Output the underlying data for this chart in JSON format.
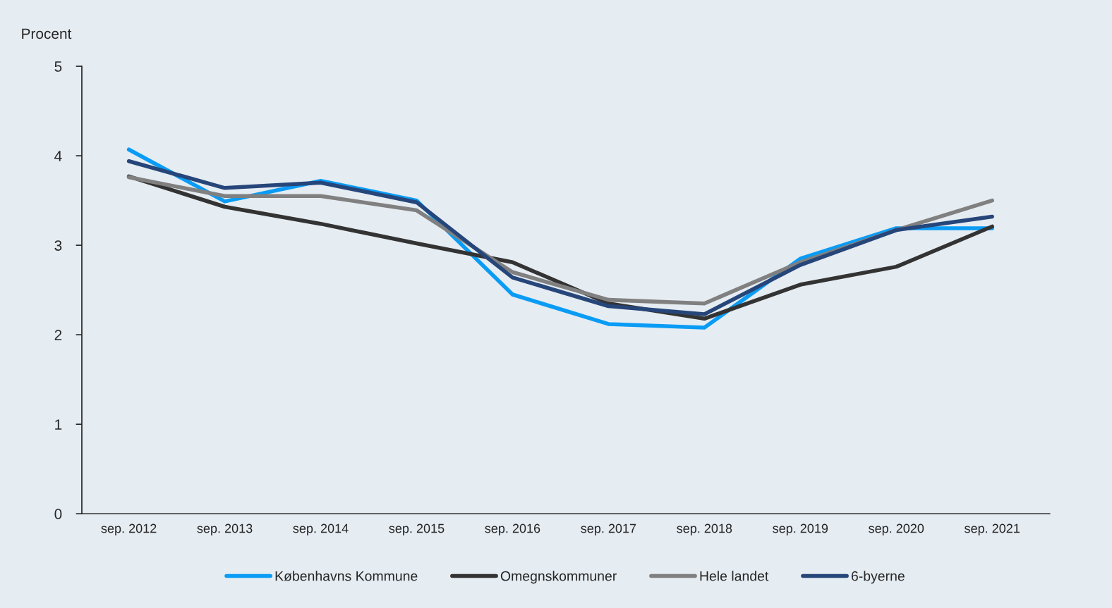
{
  "chart_data": {
    "type": "line",
    "ylabel": "Procent",
    "categories": [
      "sep. 2012",
      "sep. 2013",
      "sep. 2014",
      "sep. 2015",
      "sep. 2016",
      "sep. 2017",
      "sep. 2018",
      "sep. 2019",
      "sep. 2020",
      "sep. 2021"
    ],
    "series": [
      {
        "name": "Københavns Kommune",
        "color": "#0a9cf5",
        "values": [
          4.07,
          3.49,
          3.72,
          3.5,
          2.45,
          2.12,
          2.08,
          2.85,
          3.19,
          3.19
        ]
      },
      {
        "name": "Omegnskommuner",
        "color": "#333333",
        "values": [
          3.77,
          3.43,
          3.24,
          3.02,
          2.81,
          2.35,
          2.18,
          2.56,
          2.76,
          3.21
        ]
      },
      {
        "name": "Hele landet",
        "color": "#808080",
        "values": [
          3.76,
          3.55,
          3.55,
          3.39,
          2.7,
          2.39,
          2.35,
          2.81,
          3.17,
          3.5
        ]
      },
      {
        "name": "6-byerne",
        "color": "#26467a",
        "values": [
          3.94,
          3.64,
          3.7,
          3.48,
          2.64,
          2.32,
          2.23,
          2.78,
          3.17,
          3.32
        ]
      }
    ],
    "ylim": [
      0,
      5
    ],
    "yticks": [
      0,
      1,
      2,
      3,
      4,
      5
    ],
    "grid": false,
    "legend": "bottom",
    "marker": "none",
    "line_style": "solid"
  }
}
